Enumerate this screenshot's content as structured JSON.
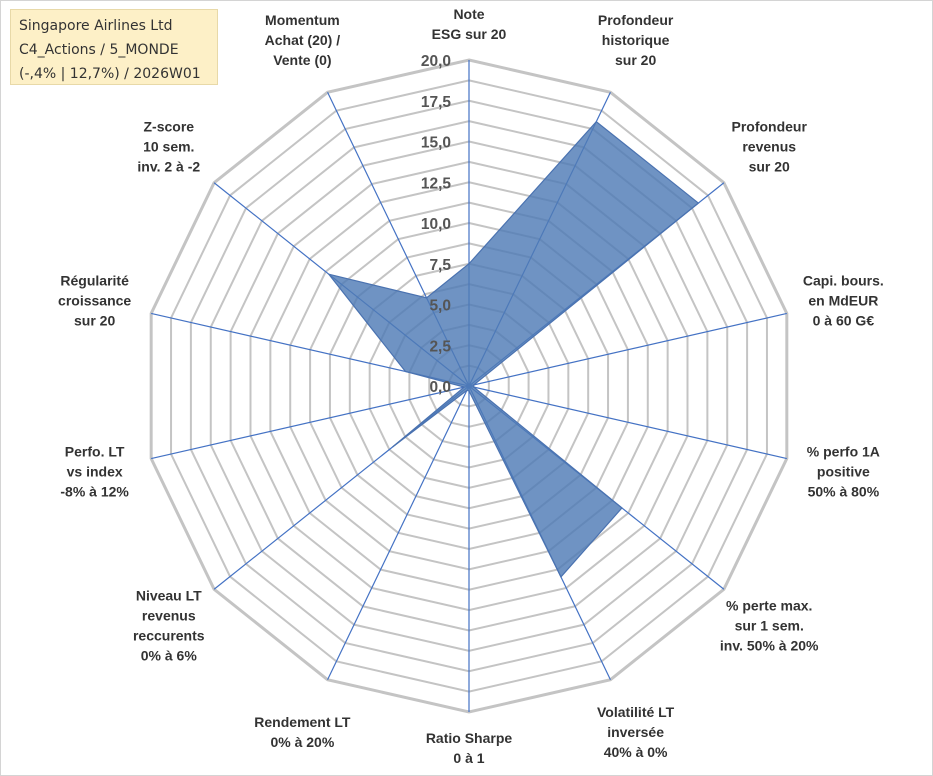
{
  "info_box": {
    "line1": "Singapore Airlines Ltd",
    "line2": "C4_Actions / 5_MONDE",
    "line3": "(-,4% | 12,7%) / 2026W01"
  },
  "colors": {
    "grid": "#c4c4c4",
    "spoke": "#4472c4",
    "fill": "#4f7bb6",
    "fill_stroke": "#4a72b0",
    "text": "#333333",
    "tick_text": "#555555"
  },
  "chart_data": {
    "type": "radar",
    "title": "",
    "rlim": [
      0,
      20
    ],
    "grid_step": 1.25,
    "tick_values": [
      0,
      2.5,
      5,
      7.5,
      10,
      12.5,
      15,
      17.5,
      20
    ],
    "tick_labels": [
      "0,0",
      "2,5",
      "5,0",
      "7,5",
      "10,0",
      "12,5",
      "15,0",
      "17,5",
      "20,0"
    ],
    "axes": [
      {
        "lines": [
          "Note",
          "ESG sur 20"
        ]
      },
      {
        "lines": [
          "Profondeur",
          "historique",
          "sur 20"
        ]
      },
      {
        "lines": [
          "Profondeur",
          "revenus",
          "sur 20"
        ]
      },
      {
        "lines": [
          "Capi. bours.",
          "en MdEUR",
          "0 à 60 G€"
        ]
      },
      {
        "lines": [
          "% perfo 1A",
          "positive",
          "50% à 80%"
        ]
      },
      {
        "lines": [
          "% perte max.",
          "sur 1 sem.",
          "inv. 50% à 20%"
        ]
      },
      {
        "lines": [
          "Volatilité LT",
          "inversée",
          "40% à 0%"
        ]
      },
      {
        "lines": [
          "Ratio Sharpe",
          "0 à 1"
        ]
      },
      {
        "lines": [
          "Rendement LT",
          "0% à 20%"
        ]
      },
      {
        "lines": [
          "Niveau LT",
          "revenus",
          "reccurents",
          "0% à 6%"
        ]
      },
      {
        "lines": [
          "Perfo. LT",
          "vs index",
          "-8% à 12%"
        ]
      },
      {
        "lines": [
          "Régularité",
          "croissance",
          "sur 20"
        ]
      },
      {
        "lines": [
          "Z-score",
          "10 sem.",
          "inv. 2 à -2"
        ]
      },
      {
        "lines": [
          "Momentum",
          "Achat (20) /",
          "Vente (0)"
        ]
      }
    ],
    "series": [
      {
        "name": "Singapore Airlines Ltd",
        "values": [
          7.5,
          18.0,
          18.0,
          0.3,
          0.3,
          12.0,
          13.0,
          0.3,
          0.3,
          6.0,
          0.3,
          4.0,
          11.0,
          6.0
        ]
      }
    ]
  }
}
